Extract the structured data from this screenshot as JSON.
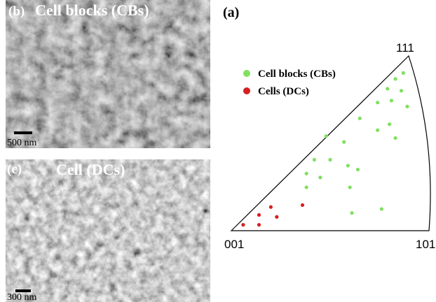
{
  "panels": {
    "b": {
      "label": "(b)",
      "caption": "Cell blocks (CBs)",
      "scale_bar": "500 nm"
    },
    "c": {
      "label": "(c)",
      "caption": "Cell (DCs)",
      "scale_bar": "300 nm"
    }
  },
  "chart_data": {
    "type": "scatter",
    "panel_label": "(a)",
    "vertex_labels": {
      "origin": "001",
      "right": "101",
      "top": "111"
    },
    "xlim": [
      0,
      1
    ],
    "ylim": [
      0,
      1
    ],
    "series": [
      {
        "name": "Cell blocks (CBs)",
        "color": "#80e060",
        "x": [
          0.87,
          0.83,
          0.79,
          0.86,
          0.74,
          0.81,
          0.89,
          0.65,
          0.8,
          0.74,
          0.48,
          0.57,
          0.83,
          0.42,
          0.5,
          0.59,
          0.38,
          0.64,
          0.45,
          0.6,
          0.38,
          0.61,
          0.76
        ],
        "values": [
          0.8,
          0.77,
          0.72,
          0.71,
          0.65,
          0.66,
          0.63,
          0.57,
          0.54,
          0.51,
          0.48,
          0.45,
          0.47,
          0.36,
          0.36,
          0.33,
          0.29,
          0.31,
          0.27,
          0.22,
          0.22,
          0.09,
          0.11
        ]
      },
      {
        "name": "Cells (DCs)",
        "color": "#d42020",
        "x": [
          0.06,
          0.14,
          0.14,
          0.2,
          0.23,
          0.36
        ],
        "values": [
          0.03,
          0.08,
          0.03,
          0.12,
          0.07,
          0.13
        ]
      }
    ]
  }
}
